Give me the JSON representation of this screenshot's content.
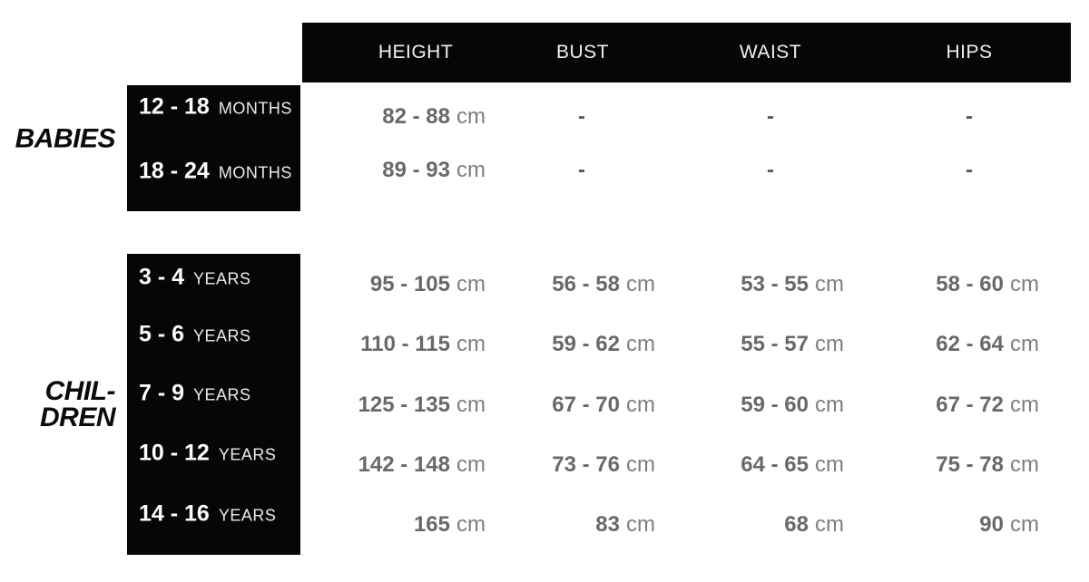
{
  "chart_data": {
    "type": "table",
    "columns": [
      "HEIGHT",
      "BUST",
      "WAIST",
      "HIPS"
    ],
    "unit": "cm",
    "groups": [
      {
        "label": "BABIES",
        "label_lines": [
          "BABIES"
        ],
        "age_unit": "MONTHS",
        "rows": [
          {
            "age": "12 - 18",
            "height": "82 - 88",
            "bust": "-",
            "waist": "-",
            "hips": "-"
          },
          {
            "age": "18 - 24",
            "height": "89 - 93",
            "bust": "-",
            "waist": "-",
            "hips": "-"
          }
        ]
      },
      {
        "label": "CHILDREN",
        "label_lines": [
          "CHIL-",
          "DREN"
        ],
        "age_unit": "YEARS",
        "rows": [
          {
            "age": "3 - 4",
            "height": "95 - 105",
            "bust": "56 - 58",
            "waist": "53 - 55",
            "hips": "58 - 60"
          },
          {
            "age": "5 - 6",
            "height": "110 - 115",
            "bust": "59 - 62",
            "waist": "55 - 57",
            "hips": "62 - 64"
          },
          {
            "age": "7 - 9",
            "height": "125 - 135",
            "bust": "67 - 70",
            "waist": "59 - 60",
            "hips": "67 - 72"
          },
          {
            "age": "10 - 12",
            "height": "142 - 148",
            "bust": "73 - 76",
            "waist": "64 - 65",
            "hips": "75 - 78"
          },
          {
            "age": "14 - 16",
            "height": "165",
            "bust": "83",
            "waist": "68",
            "hips": "90"
          }
        ]
      }
    ],
    "colors": {
      "box_black": "#060606",
      "value_gray": "#696969",
      "label_white": "#ffffff"
    }
  }
}
